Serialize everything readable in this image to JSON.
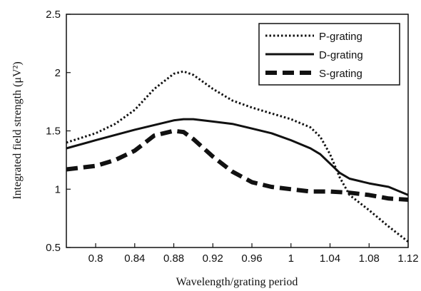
{
  "chart_data": {
    "type": "line",
    "title": "",
    "xlabel": "Wavelength/grating period",
    "ylabel": "Integrated field strength (μV²)",
    "xlim": [
      0.77,
      1.12
    ],
    "ylim": [
      0.5,
      2.5
    ],
    "xticks": [
      0.8,
      0.84,
      0.88,
      0.92,
      0.96,
      1,
      1.04,
      1.08,
      1.12
    ],
    "xtick_labels": [
      "0.8",
      "0.84",
      "0.88",
      "0.92",
      "0.96",
      "1",
      "1.04",
      "1.08",
      "1.12"
    ],
    "yticks": [
      0.5,
      1,
      1.5,
      2,
      2.5
    ],
    "ytick_labels": [
      "0.5",
      "1",
      "1.5",
      "2",
      "2.5"
    ],
    "grid": false,
    "legend_position": "top-right",
    "series": [
      {
        "name": "P-grating",
        "style": "dotted",
        "color": "#111111",
        "x": [
          0.77,
          0.8,
          0.82,
          0.84,
          0.86,
          0.88,
          0.89,
          0.9,
          0.92,
          0.94,
          0.96,
          0.98,
          1.0,
          1.02,
          1.03,
          1.04,
          1.05,
          1.06,
          1.08,
          1.1,
          1.12
        ],
        "y": [
          1.4,
          1.48,
          1.56,
          1.68,
          1.86,
          1.99,
          2.01,
          1.98,
          1.86,
          1.76,
          1.7,
          1.65,
          1.6,
          1.53,
          1.45,
          1.3,
          1.1,
          0.95,
          0.82,
          0.68,
          0.55
        ]
      },
      {
        "name": "D-grating",
        "style": "solid",
        "color": "#111111",
        "x": [
          0.77,
          0.8,
          0.84,
          0.88,
          0.89,
          0.9,
          0.92,
          0.94,
          0.96,
          0.98,
          1.0,
          1.02,
          1.03,
          1.04,
          1.05,
          1.06,
          1.08,
          1.1,
          1.12
        ],
        "y": [
          1.35,
          1.42,
          1.51,
          1.59,
          1.6,
          1.6,
          1.58,
          1.56,
          1.52,
          1.48,
          1.42,
          1.35,
          1.3,
          1.22,
          1.14,
          1.09,
          1.05,
          1.02,
          0.95
        ]
      },
      {
        "name": "S-grating",
        "style": "dashed",
        "color": "#111111",
        "x": [
          0.77,
          0.8,
          0.82,
          0.84,
          0.86,
          0.88,
          0.89,
          0.9,
          0.92,
          0.94,
          0.96,
          0.98,
          1.0,
          1.02,
          1.04,
          1.06,
          1.08,
          1.1,
          1.12
        ],
        "y": [
          1.17,
          1.2,
          1.25,
          1.33,
          1.46,
          1.5,
          1.49,
          1.43,
          1.28,
          1.15,
          1.06,
          1.02,
          1.0,
          0.98,
          0.98,
          0.97,
          0.95,
          0.92,
          0.91
        ]
      }
    ]
  }
}
